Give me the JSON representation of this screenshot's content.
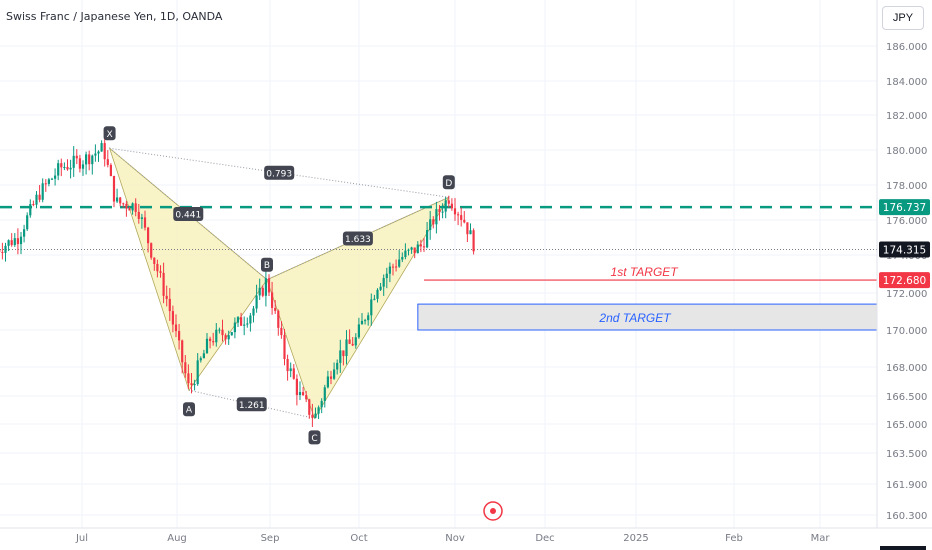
{
  "header": {
    "title": "Swiss Franc / Japanese Yen, 1D, OANDA",
    "currency_button": "JPY"
  },
  "colors": {
    "up": "#089981",
    "down": "#f23645",
    "pattern_fill": "#f7f0b5",
    "target1": "#f23645",
    "target2": "#2962ff",
    "resistance": "#089981"
  },
  "chart_data": {
    "type": "candlestick",
    "symbol": "CHFJPY",
    "timeframe": "1D",
    "ylim": [
      160.3,
      187.5
    ],
    "y_ticks": [
      "186.000",
      "184.000",
      "182.000",
      "180.000",
      "178.000",
      "176.000",
      "174.000",
      "172.000",
      "170.000",
      "168.000",
      "166.500",
      "165.000",
      "163.500",
      "161.900",
      "160.300"
    ],
    "x_ticks": [
      "Jul",
      "Aug",
      "Sep",
      "Oct",
      "Nov",
      "Dec",
      "2025",
      "Feb",
      "Mar"
    ],
    "last_price": "174.315",
    "resistance_level": "176.737",
    "target1": {
      "label": "1st TARGET",
      "price": "172.680"
    },
    "target2": {
      "label": "2nd TARGET",
      "low": 170.0,
      "high": 171.4
    },
    "pattern": {
      "points": [
        {
          "label": "X",
          "date": "2024-07-10",
          "price": 180.1
        },
        {
          "label": "A",
          "date": "2024-08-05",
          "price": 166.8
        },
        {
          "label": "B",
          "date": "2024-08-31",
          "price": 172.7
        },
        {
          "label": "C",
          "date": "2024-09-16",
          "price": 165.3
        },
        {
          "label": "D",
          "date": "2024-10-30",
          "price": 177.3
        }
      ],
      "ratios": [
        {
          "from": "X",
          "to": "B",
          "value": "0.441"
        },
        {
          "from": "A",
          "to": "C",
          "value": "1.261"
        },
        {
          "from": "B",
          "to": "D",
          "value": "1.633"
        },
        {
          "from": "X",
          "to": "D",
          "value": "0.793"
        }
      ]
    },
    "price_path": [
      {
        "date": "2024-06-03",
        "close": 174.3
      },
      {
        "date": "2024-06-10",
        "close": 175.0
      },
      {
        "date": "2024-06-17",
        "close": 177.5
      },
      {
        "date": "2024-06-24",
        "close": 179.0
      },
      {
        "date": "2024-07-01",
        "close": 179.4
      },
      {
        "date": "2024-07-08",
        "close": 180.1
      },
      {
        "date": "2024-07-12",
        "close": 177.0
      },
      {
        "date": "2024-07-19",
        "close": 176.8
      },
      {
        "date": "2024-07-24",
        "close": 174.0
      },
      {
        "date": "2024-07-29",
        "close": 171.5
      },
      {
        "date": "2024-08-05",
        "close": 166.8
      },
      {
        "date": "2024-08-12",
        "close": 169.5
      },
      {
        "date": "2024-08-19",
        "close": 170.0
      },
      {
        "date": "2024-08-26",
        "close": 171.0
      },
      {
        "date": "2024-08-31",
        "close": 172.7
      },
      {
        "date": "2024-09-06",
        "close": 168.5
      },
      {
        "date": "2024-09-11",
        "close": 166.5
      },
      {
        "date": "2024-09-16",
        "close": 165.3
      },
      {
        "date": "2024-09-23",
        "close": 168.5
      },
      {
        "date": "2024-09-30",
        "close": 169.5
      },
      {
        "date": "2024-10-07",
        "close": 172.5
      },
      {
        "date": "2024-10-14",
        "close": 173.8
      },
      {
        "date": "2024-10-21",
        "close": 174.5
      },
      {
        "date": "2024-10-25",
        "close": 176.0
      },
      {
        "date": "2024-10-30",
        "close": 177.3
      },
      {
        "date": "2024-11-04",
        "close": 176.0
      },
      {
        "date": "2024-11-08",
        "close": 174.3
      }
    ]
  }
}
